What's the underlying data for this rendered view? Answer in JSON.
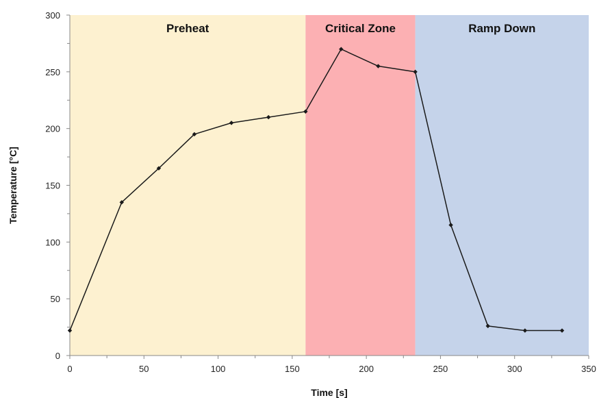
{
  "chart_data": {
    "type": "line",
    "title": "",
    "xlabel": "Time [s]",
    "ylabel": "Temperature [°C]",
    "xlim": [
      0,
      350
    ],
    "ylim": [
      0,
      300
    ],
    "xticks": [
      "0",
      "50",
      "100",
      "150",
      "200",
      "250",
      "300",
      "350"
    ],
    "yticks": [
      "0",
      "50",
      "100",
      "150",
      "200",
      "250",
      "300"
    ],
    "grid": false,
    "zones": [
      {
        "label": "Preheat",
        "x_start": 0,
        "x_end": 159,
        "color": "#fdf1d0"
      },
      {
        "label": "Critical Zone",
        "x_start": 159,
        "x_end": 233,
        "color": "#fcb0b3"
      },
      {
        "label": "Ramp Down",
        "x_start": 233,
        "x_end": 350,
        "color": "#c5d3ea"
      }
    ],
    "series": [
      {
        "x": [
          0,
          35,
          60,
          84,
          109,
          134,
          159,
          183,
          208,
          233,
          257,
          282,
          307,
          332
        ],
        "values": [
          22,
          135,
          165,
          195,
          205,
          210,
          215,
          270,
          255,
          250,
          115,
          26,
          22,
          22
        ],
        "color": "#1a1a1a"
      }
    ]
  }
}
